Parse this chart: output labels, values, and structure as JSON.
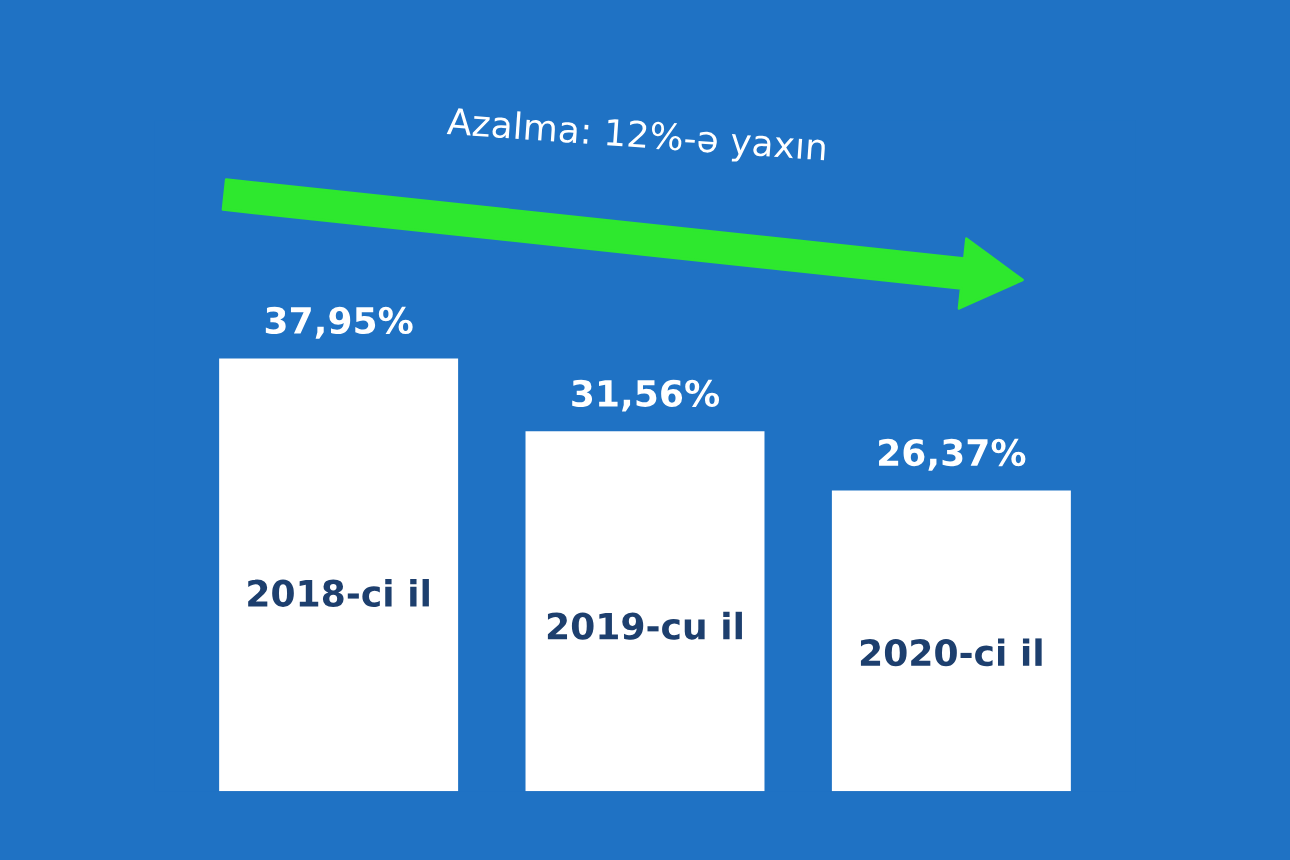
{
  "chart_data": {
    "type": "bar",
    "categories": [
      "2018-ci il",
      "2019-cu il",
      "2020-ci il"
    ],
    "values": [
      37.95,
      31.56,
      26.37
    ],
    "color": "#ffffff",
    "value_labels": [
      "37,95%",
      "31,56%",
      "26,37%"
    ],
    "annotations": [
      "Azalma: 12%-ə yaxın"
    ],
    "legend": false
  }
}
